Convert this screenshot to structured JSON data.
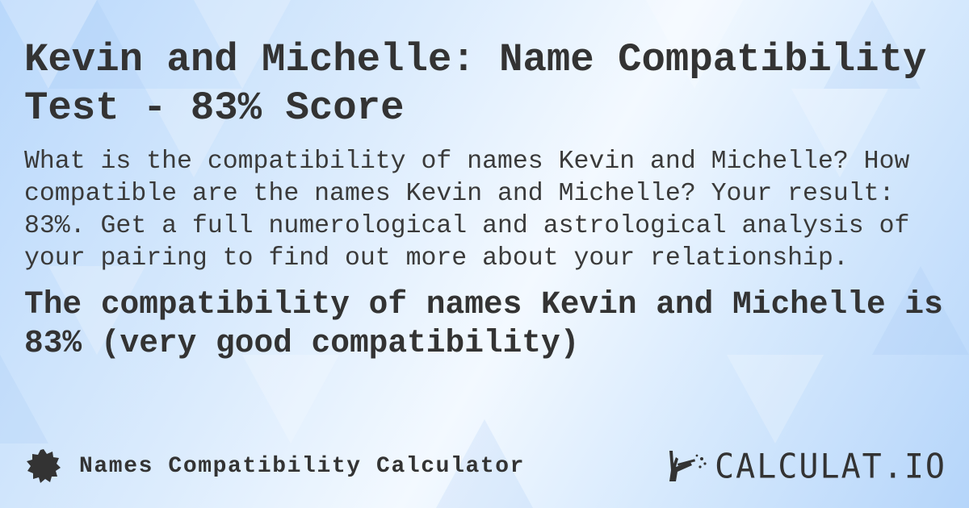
{
  "title": "Kevin and Michelle: Name Compatibility Test - 83% Score",
  "description": "What is the compatibility of names Kevin and Michelle? How compatible are the names Kevin and Michelle? Your result: 83%. Get a full numerological and astrological analysis of your pairing to find out more about your relationship.",
  "result": "The compatibility of names Kevin and Michelle is 83% (very good compatibility)",
  "footer": {
    "calculator_name": "Names Compatibility Calculator",
    "badge_icon": "seal-badge-icon",
    "brand": "CALCULAT.IO",
    "brand_icon": "magic-wand-hand-icon"
  },
  "colors": {
    "text": "#333333",
    "background": "#cfe4fc"
  }
}
